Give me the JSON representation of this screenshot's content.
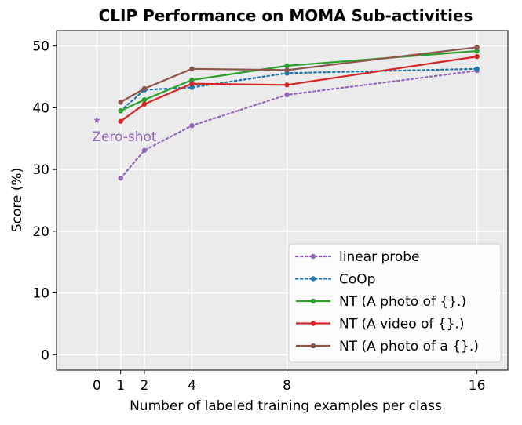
{
  "chart_data": {
    "type": "line",
    "title": "CLIP Performance on MOMA Sub-activities",
    "xlabel": "Number of labeled training examples per class",
    "ylabel": "Score (%)",
    "xlim": [
      -1.7,
      17.3
    ],
    "ylim": [
      -2.5,
      52.5
    ],
    "xticks": [
      0,
      1,
      2,
      4,
      8,
      16
    ],
    "yticks": [
      0,
      10,
      20,
      30,
      40,
      50
    ],
    "grid": true,
    "legend_position": "lower right",
    "zero_shot": {
      "x": 0,
      "y": 38.0,
      "label": "Zero-shot",
      "color": "#9467bd"
    },
    "series": [
      {
        "name": "linear probe",
        "color": "#9467bd",
        "linestyle": "dotted",
        "x": [
          1,
          2,
          4,
          8,
          16
        ],
        "y": [
          28.6,
          33.1,
          37.1,
          42.1,
          46.0
        ]
      },
      {
        "name": "CoOp",
        "color": "#1f77b4",
        "linestyle": "dotted",
        "x": [
          1,
          2,
          4,
          8,
          16
        ],
        "y": [
          39.5,
          42.9,
          43.3,
          45.6,
          46.3
        ]
      },
      {
        "name": "NT (A photo of {}.)",
        "color": "#2ca02c",
        "linestyle": "solid",
        "x": [
          1,
          2,
          4,
          8,
          16
        ],
        "y": [
          39.5,
          41.3,
          44.5,
          46.8,
          49.2
        ]
      },
      {
        "name": "NT (A video of {}.)",
        "color": "#d62728",
        "linestyle": "solid",
        "x": [
          1,
          2,
          4,
          8,
          16
        ],
        "y": [
          37.8,
          40.6,
          43.9,
          43.7,
          48.3
        ]
      },
      {
        "name": "NT (A photo of a {}.)",
        "color": "#8c564b",
        "linestyle": "solid",
        "x": [
          1,
          2,
          4,
          8,
          16
        ],
        "y": [
          40.9,
          43.1,
          46.3,
          46.1,
          49.8
        ]
      }
    ]
  }
}
